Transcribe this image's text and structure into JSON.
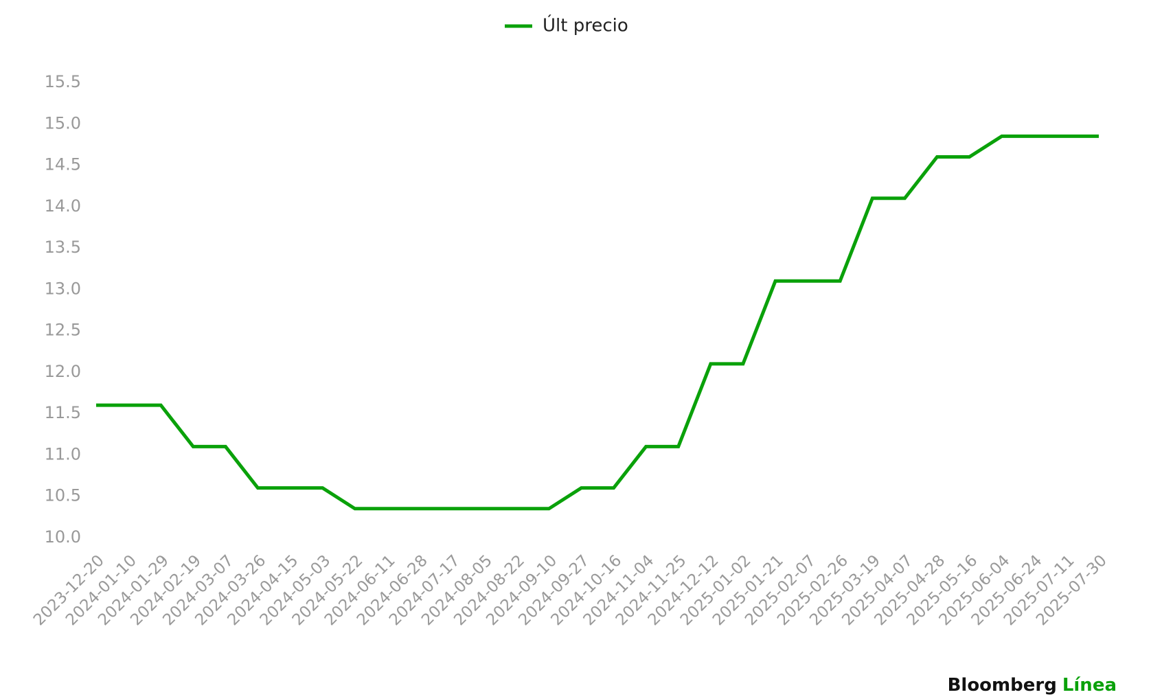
{
  "chart_data": {
    "type": "line",
    "categories": [
      "2023-12-20",
      "2024-01-10",
      "2024-01-29",
      "2024-02-19",
      "2024-03-07",
      "2024-03-26",
      "2024-04-15",
      "2024-05-03",
      "2024-05-22",
      "2024-06-11",
      "2024-06-28",
      "2024-07-17",
      "2024-08-05",
      "2024-08-22",
      "2024-09-10",
      "2024-09-27",
      "2024-10-16",
      "2024-11-04",
      "2024-11-25",
      "2024-12-12",
      "2025-01-02",
      "2025-01-21",
      "2025-02-07",
      "2025-02-26",
      "2025-03-19",
      "2025-04-07",
      "2025-04-28",
      "2025-05-16",
      "2025-06-04",
      "2025-06-24",
      "2025-07-11",
      "2025-07-30"
    ],
    "series": [
      {
        "name": "Últ precio",
        "color": "#0aa10a",
        "values": [
          11.6,
          11.6,
          11.6,
          11.1,
          11.1,
          10.6,
          10.6,
          10.6,
          10.35,
          10.35,
          10.35,
          10.35,
          10.35,
          10.35,
          10.35,
          10.6,
          10.6,
          11.1,
          11.1,
          12.1,
          12.1,
          13.1,
          13.1,
          13.1,
          14.1,
          14.1,
          14.6,
          14.6,
          14.85,
          14.85,
          14.85,
          14.85
        ]
      }
    ],
    "ylim": [
      10,
      15.5
    ],
    "yticks": [
      {
        "value": 10,
        "label": "10.0"
      },
      10.5,
      {
        "value": 11,
        "label": "11.0"
      },
      11.5,
      {
        "value": 12,
        "label": "12.0"
      },
      12.5,
      {
        "value": 13,
        "label": "13.0"
      },
      13.5,
      {
        "value": 14,
        "label": "14.0"
      },
      14.5,
      {
        "value": 15,
        "label": "15.0"
      },
      15.5
    ],
    "grid": false,
    "legend": "top"
  },
  "logo": {
    "name": "Bloomberg",
    "sub": "Línea"
  }
}
